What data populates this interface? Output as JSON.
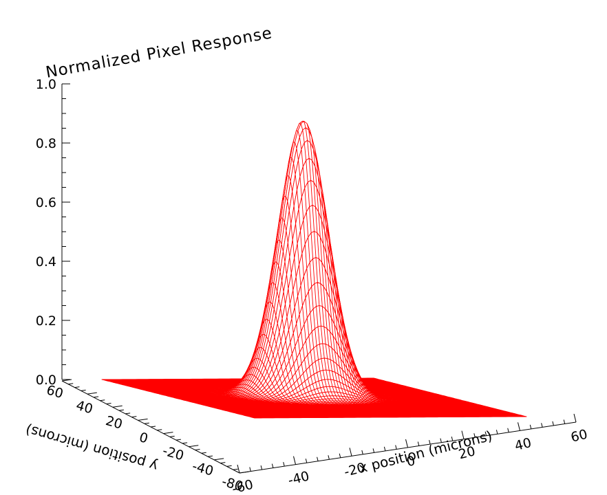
{
  "chart_data": {
    "type": "surface",
    "title": "Normalized Pixel Response",
    "xlabel": "x position (microns)",
    "ylabel": "y position (microns)",
    "zlabel": "",
    "x_ticks": [
      "-60",
      "-40",
      "-20",
      "0",
      "20",
      "40",
      "60"
    ],
    "y_ticks": [
      "-80",
      "-40",
      "-20",
      "0",
      "20",
      "40",
      "60"
    ],
    "z_ticks": [
      "0.0",
      "0.2",
      "0.4",
      "0.6",
      "0.8",
      "1.0"
    ],
    "xlim": [
      -60,
      60
    ],
    "ylim": [
      -80,
      60
    ],
    "zlim": [
      0,
      1
    ],
    "surface": {
      "function": "gaussian",
      "peak": 0.93,
      "center_x": 0,
      "center_y": 0,
      "sigma_microns": 10
    },
    "mesh_color": "#ff0000",
    "background": "#ffffff",
    "axis_color": "#000000"
  }
}
